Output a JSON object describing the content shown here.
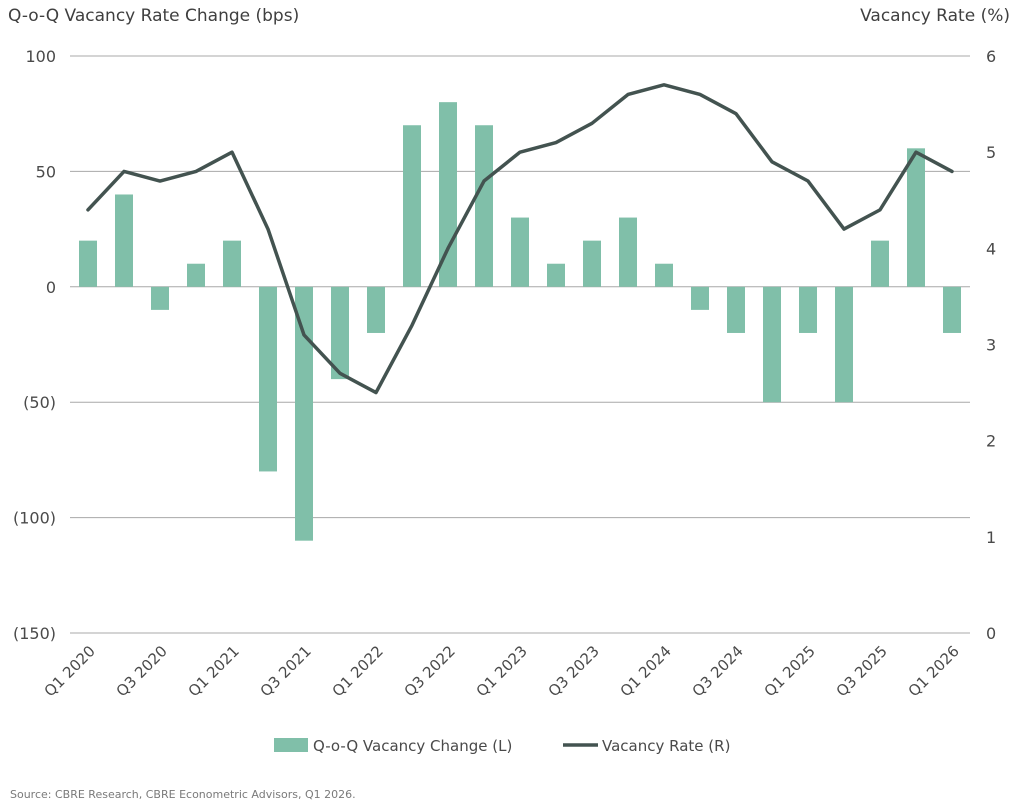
{
  "chart_data": {
    "type": "bar+line",
    "title_left": "Q-o-Q Vacancy Rate Change (bps)",
    "title_right": "Vacancy Rate (%)",
    "categories": [
      "Q1 2020",
      "Q2 2020",
      "Q3 2020",
      "Q4 2020",
      "Q1 2021",
      "Q2 2021",
      "Q3 2021",
      "Q4 2021",
      "Q1 2022",
      "Q2 2022",
      "Q3 2022",
      "Q4 2022",
      "Q1 2023",
      "Q2 2023",
      "Q3 2023",
      "Q4 2023",
      "Q1 2024",
      "Q2 2024",
      "Q3 2024",
      "Q4 2024",
      "Q1 2025",
      "Q2 2025",
      "Q3 2025",
      "Q4 2025",
      "Q1 2026"
    ],
    "x_tick_labels": [
      "Q1 2020",
      "Q3 2020",
      "Q1 2021",
      "Q3 2021",
      "Q1 2022",
      "Q3 2022",
      "Q1 2023",
      "Q3 2023",
      "Q1 2024",
      "Q3 2024",
      "Q1 2025",
      "Q3 2025",
      "Q1 2026"
    ],
    "series": [
      {
        "name": "Q-o-Q Vacancy Change (L)",
        "type": "bar",
        "axis": "left",
        "color": "#80bfa9",
        "values": [
          20,
          40,
          -10,
          10,
          20,
          -80,
          -110,
          -40,
          -20,
          70,
          80,
          70,
          30,
          10,
          20,
          30,
          10,
          -10,
          -20,
          -50,
          -20,
          -50,
          20,
          60,
          -20
        ]
      },
      {
        "name": "Vacancy Rate (R)",
        "type": "line",
        "axis": "right",
        "color": "#435350",
        "values": [
          4.4,
          4.8,
          4.7,
          4.8,
          5.0,
          4.2,
          3.1,
          2.7,
          2.5,
          3.2,
          4.0,
          4.7,
          5.0,
          5.1,
          5.3,
          5.6,
          5.7,
          5.6,
          5.4,
          4.9,
          4.7,
          4.2,
          4.4,
          5.0,
          4.8
        ]
      }
    ],
    "y_left": {
      "min": -150,
      "max": 100,
      "ticks": [
        100,
        50,
        0,
        -50,
        -100,
        -150
      ],
      "tick_labels": [
        "100",
        "50",
        "0",
        "(50)",
        "(100)",
        "(150)"
      ]
    },
    "y_right": {
      "min": 0,
      "max": 6,
      "ticks": [
        6,
        5,
        4,
        3,
        2,
        1,
        0
      ],
      "tick_labels": [
        "6",
        "5",
        "4",
        "3",
        "2",
        "1",
        "0"
      ]
    },
    "grid": true,
    "legend_position": "bottom-center"
  },
  "source": "Source: CBRE Research, CBRE Econometric Advisors, Q1 2026."
}
